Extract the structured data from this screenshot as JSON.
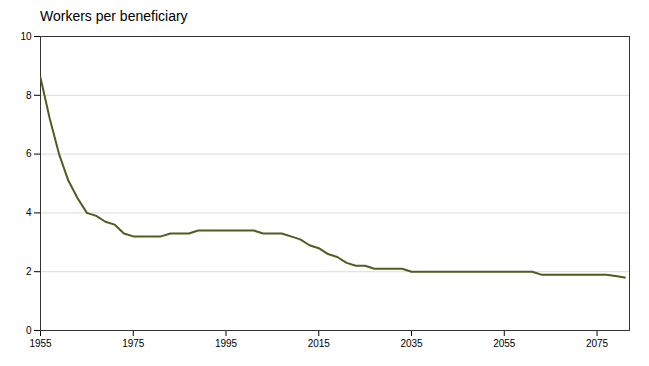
{
  "chart_data": {
    "type": "line",
    "title": "Workers per beneficiary",
    "x": [
      1955,
      1957,
      1959,
      1961,
      1963,
      1965,
      1967,
      1969,
      1971,
      1973,
      1975,
      1977,
      1979,
      1981,
      1983,
      1985,
      1987,
      1989,
      1991,
      1993,
      1995,
      1997,
      1999,
      2001,
      2003,
      2005,
      2007,
      2009,
      2011,
      2013,
      2015,
      2017,
      2019,
      2021,
      2023,
      2025,
      2027,
      2029,
      2031,
      2033,
      2035,
      2037,
      2039,
      2041,
      2043,
      2045,
      2047,
      2049,
      2051,
      2053,
      2055,
      2057,
      2059,
      2061,
      2063,
      2065,
      2067,
      2069,
      2071,
      2073,
      2075,
      2077,
      2079,
      2081
    ],
    "values": [
      8.6,
      7.2,
      6.0,
      5.1,
      4.5,
      4.0,
      3.9,
      3.7,
      3.6,
      3.3,
      3.2,
      3.2,
      3.2,
      3.2,
      3.3,
      3.3,
      3.3,
      3.4,
      3.4,
      3.4,
      3.4,
      3.4,
      3.4,
      3.4,
      3.3,
      3.3,
      3.3,
      3.2,
      3.1,
      2.9,
      2.8,
      2.6,
      2.5,
      2.3,
      2.2,
      2.2,
      2.1,
      2.1,
      2.1,
      2.1,
      2.0,
      2.0,
      2.0,
      2.0,
      2.0,
      2.0,
      2.0,
      2.0,
      2.0,
      2.0,
      2.0,
      2.0,
      2.0,
      2.0,
      1.9,
      1.9,
      1.9,
      1.9,
      1.9,
      1.9,
      1.9,
      1.9,
      1.85,
      1.8
    ],
    "color": "#4f5e1e",
    "xlim": [
      1955,
      2082
    ],
    "xticks": [
      1955,
      1975,
      1995,
      2015,
      2035,
      2055,
      2075
    ],
    "ylim": [
      0,
      10
    ],
    "yticks": [
      0,
      2,
      4,
      6,
      8,
      10
    ],
    "grid": true
  }
}
